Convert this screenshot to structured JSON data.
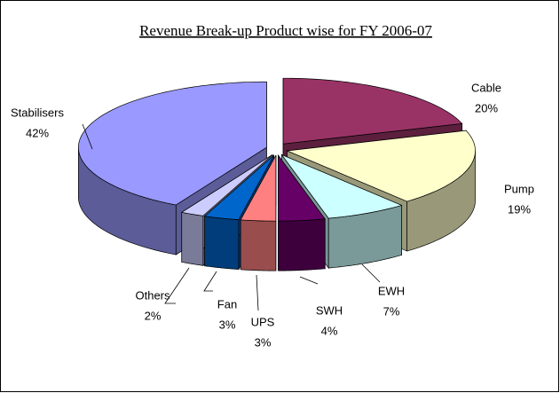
{
  "chart_data": {
    "type": "pie3d",
    "title": "Revenue Break-up Product wise for FY 2006-07",
    "categories": [
      "Cable",
      "Pump",
      "EWH",
      "SWH",
      "UPS",
      "Fan",
      "Others",
      "Stabilisers"
    ],
    "values": [
      20,
      19,
      7,
      4,
      3,
      3,
      2,
      42
    ],
    "value_labels": [
      "20%",
      "19%",
      "7%",
      "4%",
      "3%",
      "3%",
      "2%",
      "42%"
    ],
    "colors": [
      "#993366",
      "#FFFFCC",
      "#CCFFFF",
      "#660066",
      "#FF8080",
      "#0066CC",
      "#CCCCFF",
      "#9999FF"
    ]
  }
}
